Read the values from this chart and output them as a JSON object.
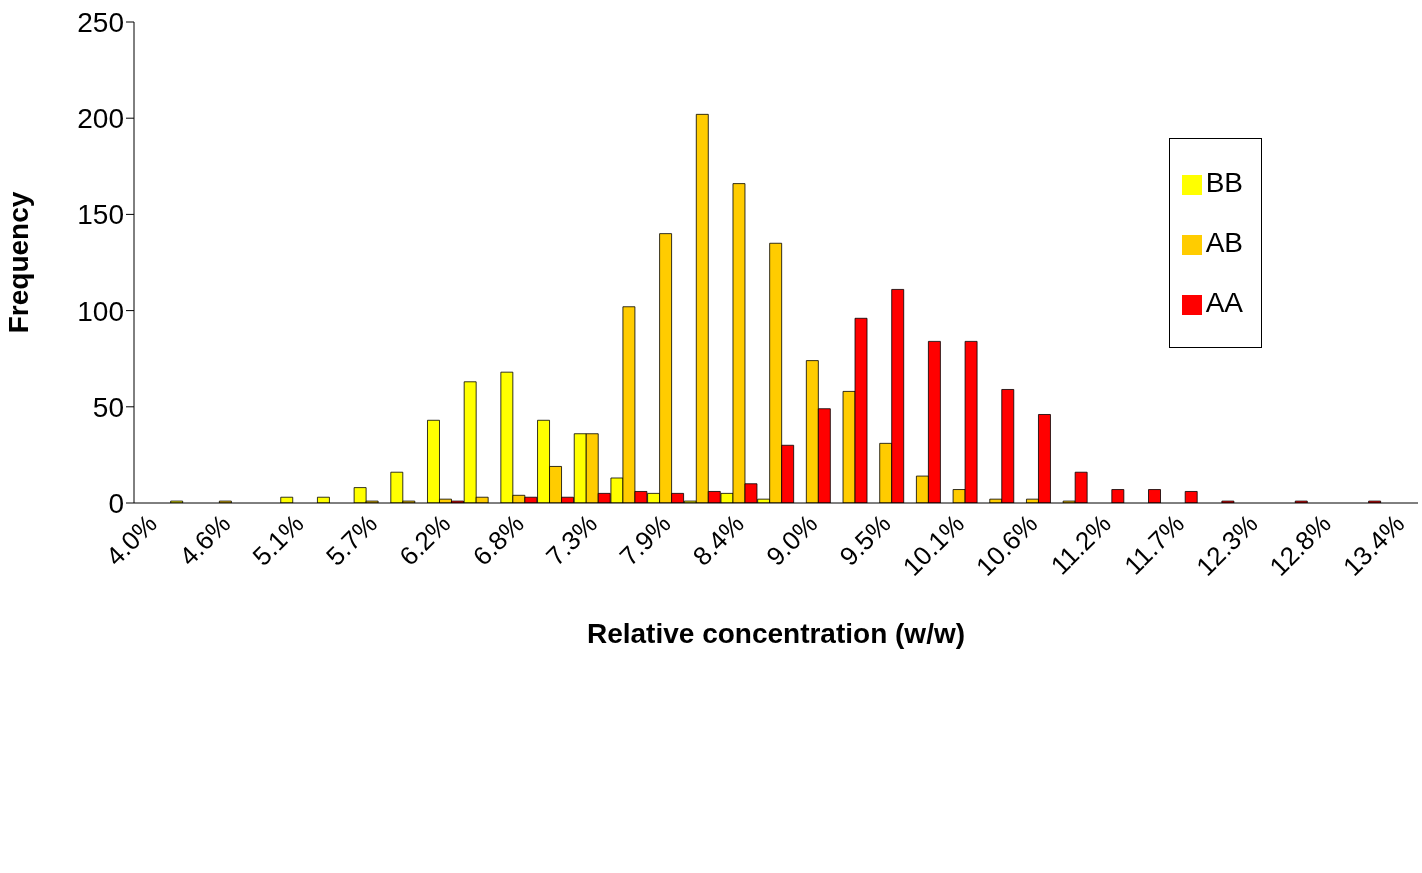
{
  "chart_data": {
    "type": "bar",
    "xlabel": "Relative concentration (w/w)",
    "ylabel": "Frequency",
    "categories": [
      "4.0%",
      null,
      "4.6%",
      null,
      "5.1%",
      null,
      "5.7%",
      null,
      "6.2%",
      null,
      "6.8%",
      null,
      "7.3%",
      null,
      "7.9%",
      null,
      "8.4%",
      null,
      "9.0%",
      null,
      "9.5%",
      null,
      "10.1%",
      null,
      "10.6%",
      null,
      "11.2%",
      null,
      "11.7%",
      null,
      "12.3%",
      null,
      "12.8%",
      null,
      "13.4%"
    ],
    "series": [
      {
        "name": "BB",
        "color": "#ffff00",
        "values": [
          0,
          1,
          0,
          0,
          3,
          3,
          8,
          16,
          43,
          63,
          68,
          43,
          36,
          13,
          5,
          1,
          5,
          2,
          0,
          0,
          0,
          0,
          0,
          0,
          0,
          0,
          0,
          0,
          0,
          0,
          0,
          0,
          0,
          0,
          0
        ]
      },
      {
        "name": "AB",
        "color": "#ffcc00",
        "values": [
          0,
          0,
          1,
          0,
          0,
          0,
          1,
          1,
          2,
          3,
          4,
          19,
          36,
          102,
          140,
          202,
          166,
          135,
          74,
          58,
          31,
          14,
          7,
          2,
          2,
          1,
          0,
          0,
          0,
          0,
          0,
          0,
          0,
          0,
          0
        ]
      },
      {
        "name": "AA",
        "color": "#ff0000",
        "values": [
          0,
          0,
          0,
          0,
          0,
          0,
          0,
          0,
          1,
          0,
          3,
          3,
          5,
          6,
          5,
          6,
          10,
          30,
          49,
          96,
          111,
          84,
          84,
          59,
          46,
          16,
          7,
          7,
          6,
          1,
          0,
          1,
          0,
          1,
          0
        ]
      }
    ],
    "ylim": [
      0,
      250
    ],
    "yticks": [
      0,
      50,
      100,
      150,
      200,
      250
    ],
    "grid": false,
    "legend": "top right"
  }
}
